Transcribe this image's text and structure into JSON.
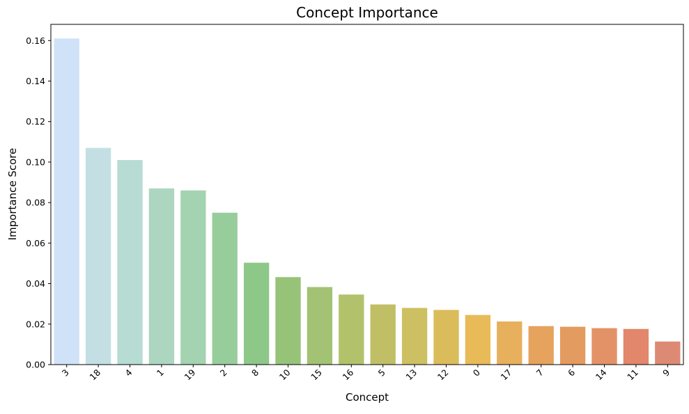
{
  "chart_data": {
    "type": "bar",
    "title": "Concept Importance",
    "xlabel": "Concept",
    "ylabel": "Importance Score",
    "categories": [
      "3",
      "18",
      "4",
      "1",
      "19",
      "2",
      "8",
      "10",
      "15",
      "16",
      "5",
      "13",
      "12",
      "0",
      "17",
      "7",
      "6",
      "14",
      "11",
      "9"
    ],
    "values": [
      0.161,
      0.107,
      0.101,
      0.087,
      0.086,
      0.075,
      0.0503,
      0.0432,
      0.0383,
      0.0346,
      0.0297,
      0.028,
      0.027,
      0.0245,
      0.0213,
      0.019,
      0.0187,
      0.018,
      0.0176,
      0.0114
    ],
    "colors": [
      "#cfe2f7",
      "#c4dfe4",
      "#b6dcd3",
      "#add6c1",
      "#a3d3b0",
      "#97cd9b",
      "#8dc888",
      "#96c378",
      "#a3c273",
      "#b1c26b",
      "#c1bf66",
      "#ccc063",
      "#dbbc5b",
      "#e8ba58",
      "#e7b05d",
      "#e6a35e",
      "#e49b5f",
      "#e39267",
      "#e2876b",
      "#dd8a74"
    ],
    "ylim": [
      0,
      0.168
    ],
    "yticks": [
      "0.00",
      "0.02",
      "0.04",
      "0.06",
      "0.08",
      "0.10",
      "0.12",
      "0.14",
      "0.16"
    ],
    "ytick_values": [
      0,
      0.02,
      0.04,
      0.06,
      0.08,
      0.1,
      0.12,
      0.14,
      0.16
    ],
    "grid": false,
    "legend": "none"
  }
}
